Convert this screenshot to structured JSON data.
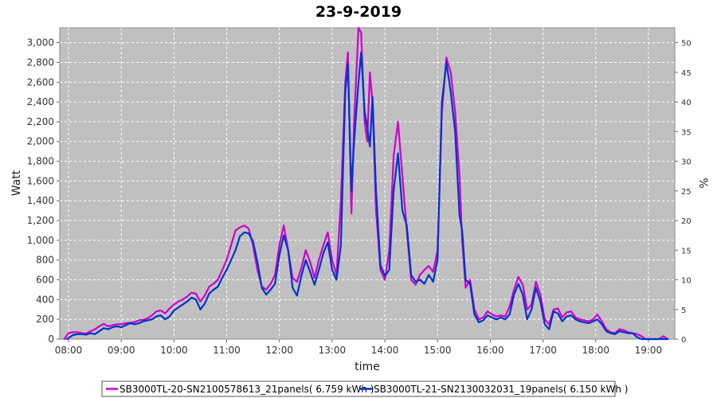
{
  "chart_data": {
    "type": "line",
    "title": "23-9-2019",
    "xlabel": "time",
    "ylabel": "Watt",
    "y2label": "%",
    "ylim": [
      0,
      3150
    ],
    "y2lim": [
      0,
      52.5
    ],
    "xlim": [
      "07:50",
      "19:30"
    ],
    "yticks": [
      0,
      200,
      400,
      600,
      800,
      1000,
      1200,
      1400,
      1600,
      1800,
      2000,
      2200,
      2400,
      2600,
      2800,
      3000
    ],
    "ytick_labels": [
      "0",
      "200",
      "400",
      "600",
      "800",
      "1,000",
      "1,200",
      "1,400",
      "1,600",
      "1,800",
      "2,000",
      "2,200",
      "2,400",
      "2,600",
      "2,800",
      "3,000"
    ],
    "y2ticks": [
      0,
      5,
      10,
      15,
      20,
      25,
      30,
      35,
      40,
      45,
      50
    ],
    "y2tick_labels": [
      "0",
      "5",
      "10",
      "15",
      "20",
      "25",
      "30",
      "35",
      "40",
      "45",
      "50"
    ],
    "xticks": [
      "08:00",
      "09:00",
      "10:00",
      "11:00",
      "12:00",
      "13:00",
      "14:00",
      "15:00",
      "16:00",
      "17:00",
      "18:00",
      "19:00"
    ],
    "grid": true,
    "legend_position": "bottom",
    "series": [
      {
        "name": "SB3000TL-20-SN2100578613_21panels( 6.759 kWh )",
        "color": "#cc00cc",
        "points": [
          [
            "07:55",
            0
          ],
          [
            "08:00",
            60
          ],
          [
            "08:05",
            70
          ],
          [
            "08:10",
            70
          ],
          [
            "08:15",
            60
          ],
          [
            "08:20",
            55
          ],
          [
            "08:25",
            80
          ],
          [
            "08:30",
            100
          ],
          [
            "08:35",
            130
          ],
          [
            "08:40",
            155
          ],
          [
            "08:45",
            130
          ],
          [
            "08:50",
            140
          ],
          [
            "08:55",
            150
          ],
          [
            "09:00",
            150
          ],
          [
            "09:05",
            160
          ],
          [
            "09:10",
            165
          ],
          [
            "09:15",
            170
          ],
          [
            "09:20",
            190
          ],
          [
            "09:25",
            195
          ],
          [
            "09:30",
            210
          ],
          [
            "09:35",
            240
          ],
          [
            "09:40",
            280
          ],
          [
            "09:45",
            290
          ],
          [
            "09:50",
            260
          ],
          [
            "09:55",
            310
          ],
          [
            "10:00",
            350
          ],
          [
            "10:05",
            380
          ],
          [
            "10:10",
            400
          ],
          [
            "10:15",
            430
          ],
          [
            "10:20",
            470
          ],
          [
            "10:25",
            460
          ],
          [
            "10:30",
            380
          ],
          [
            "10:35",
            440
          ],
          [
            "10:40",
            530
          ],
          [
            "10:45",
            560
          ],
          [
            "10:50",
            600
          ],
          [
            "10:55",
            700
          ],
          [
            "11:00",
            800
          ],
          [
            "11:05",
            950
          ],
          [
            "11:10",
            1100
          ],
          [
            "11:15",
            1130
          ],
          [
            "11:20",
            1150
          ],
          [
            "11:25",
            1120
          ],
          [
            "11:30",
            950
          ],
          [
            "11:35",
            700
          ],
          [
            "11:40",
            530
          ],
          [
            "11:45",
            500
          ],
          [
            "11:50",
            560
          ],
          [
            "11:55",
            650
          ],
          [
            "12:00",
            950
          ],
          [
            "12:05",
            1150
          ],
          [
            "12:10",
            900
          ],
          [
            "12:15",
            620
          ],
          [
            "12:20",
            580
          ],
          [
            "12:25",
            720
          ],
          [
            "12:30",
            900
          ],
          [
            "12:35",
            780
          ],
          [
            "12:40",
            620
          ],
          [
            "12:45",
            800
          ],
          [
            "12:50",
            950
          ],
          [
            "12:55",
            1080
          ],
          [
            "13:00",
            800
          ],
          [
            "13:05",
            650
          ],
          [
            "13:10",
            1400
          ],
          [
            "13:15",
            2600
          ],
          [
            "13:18",
            2900
          ],
          [
            "13:22",
            1270
          ],
          [
            "13:25",
            2200
          ],
          [
            "13:30",
            3150
          ],
          [
            "13:33",
            3100
          ],
          [
            "13:37",
            2200
          ],
          [
            "13:40",
            2000
          ],
          [
            "13:43",
            2700
          ],
          [
            "13:46",
            2400
          ],
          [
            "13:50",
            1300
          ],
          [
            "13:55",
            700
          ],
          [
            "14:00",
            600
          ],
          [
            "14:05",
            900
          ],
          [
            "14:10",
            1850
          ],
          [
            "14:15",
            2200
          ],
          [
            "14:20",
            1650
          ],
          [
            "14:25",
            1100
          ],
          [
            "14:30",
            600
          ],
          [
            "14:35",
            550
          ],
          [
            "14:40",
            650
          ],
          [
            "14:45",
            700
          ],
          [
            "14:50",
            740
          ],
          [
            "14:55",
            680
          ],
          [
            "15:00",
            900
          ],
          [
            "15:05",
            2300
          ],
          [
            "15:10",
            2850
          ],
          [
            "15:15",
            2700
          ],
          [
            "15:20",
            2300
          ],
          [
            "15:25",
            1650
          ],
          [
            "15:28",
            1000
          ],
          [
            "15:32",
            520
          ],
          [
            "15:37",
            600
          ],
          [
            "15:42",
            300
          ],
          [
            "15:47",
            200
          ],
          [
            "15:52",
            220
          ],
          [
            "15:57",
            280
          ],
          [
            "16:02",
            250
          ],
          [
            "16:07",
            230
          ],
          [
            "16:12",
            240
          ],
          [
            "16:17",
            230
          ],
          [
            "16:22",
            330
          ],
          [
            "16:27",
            500
          ],
          [
            "16:32",
            630
          ],
          [
            "16:37",
            550
          ],
          [
            "16:42",
            300
          ],
          [
            "16:47",
            350
          ],
          [
            "16:52",
            580
          ],
          [
            "16:57",
            450
          ],
          [
            "17:02",
            200
          ],
          [
            "17:07",
            150
          ],
          [
            "17:12",
            300
          ],
          [
            "17:17",
            310
          ],
          [
            "17:22",
            220
          ],
          [
            "17:27",
            270
          ],
          [
            "17:32",
            280
          ],
          [
            "17:37",
            220
          ],
          [
            "17:42",
            200
          ],
          [
            "17:47",
            190
          ],
          [
            "17:52",
            180
          ],
          [
            "17:57",
            200
          ],
          [
            "18:02",
            250
          ],
          [
            "18:07",
            180
          ],
          [
            "18:12",
            100
          ],
          [
            "18:17",
            70
          ],
          [
            "18:22",
            60
          ],
          [
            "18:27",
            100
          ],
          [
            "18:32",
            90
          ],
          [
            "18:37",
            70
          ],
          [
            "18:42",
            60
          ],
          [
            "18:47",
            50
          ],
          [
            "18:52",
            30
          ],
          [
            "18:57",
            0
          ],
          [
            "19:02",
            0
          ],
          [
            "19:07",
            0
          ],
          [
            "19:12",
            0
          ],
          [
            "19:17",
            30
          ],
          [
            "19:22",
            0
          ]
        ]
      },
      {
        "name": "SB3000TL-21-SN2130032031_19panels( 6.150 kWh )",
        "color": "#0033cc",
        "points": [
          [
            "07:58",
            0
          ],
          [
            "08:05",
            40
          ],
          [
            "08:10",
            50
          ],
          [
            "08:15",
            50
          ],
          [
            "08:20",
            45
          ],
          [
            "08:25",
            60
          ],
          [
            "08:30",
            50
          ],
          [
            "08:35",
            80
          ],
          [
            "08:40",
            110
          ],
          [
            "08:45",
            100
          ],
          [
            "08:50",
            120
          ],
          [
            "08:55",
            130
          ],
          [
            "09:00",
            120
          ],
          [
            "09:05",
            140
          ],
          [
            "09:10",
            160
          ],
          [
            "09:15",
            150
          ],
          [
            "09:20",
            160
          ],
          [
            "09:25",
            180
          ],
          [
            "09:30",
            190
          ],
          [
            "09:35",
            200
          ],
          [
            "09:40",
            230
          ],
          [
            "09:45",
            240
          ],
          [
            "09:50",
            200
          ],
          [
            "09:55",
            230
          ],
          [
            "10:00",
            290
          ],
          [
            "10:05",
            320
          ],
          [
            "10:10",
            350
          ],
          [
            "10:15",
            380
          ],
          [
            "10:20",
            420
          ],
          [
            "10:25",
            400
          ],
          [
            "10:30",
            300
          ],
          [
            "10:35",
            360
          ],
          [
            "10:40",
            460
          ],
          [
            "10:45",
            500
          ],
          [
            "10:50",
            530
          ],
          [
            "10:55",
            620
          ],
          [
            "11:00",
            700
          ],
          [
            "11:05",
            800
          ],
          [
            "11:10",
            900
          ],
          [
            "11:15",
            1040
          ],
          [
            "11:20",
            1080
          ],
          [
            "11:25",
            1070
          ],
          [
            "11:30",
            990
          ],
          [
            "11:35",
            780
          ],
          [
            "11:40",
            520
          ],
          [
            "11:45",
            450
          ],
          [
            "11:50",
            500
          ],
          [
            "11:55",
            560
          ],
          [
            "12:00",
            850
          ],
          [
            "12:05",
            1050
          ],
          [
            "12:10",
            900
          ],
          [
            "12:15",
            520
          ],
          [
            "12:20",
            440
          ],
          [
            "12:25",
            640
          ],
          [
            "12:30",
            800
          ],
          [
            "12:35",
            680
          ],
          [
            "12:40",
            550
          ],
          [
            "12:45",
            700
          ],
          [
            "12:50",
            870
          ],
          [
            "12:55",
            980
          ],
          [
            "13:00",
            700
          ],
          [
            "13:05",
            600
          ],
          [
            "13:10",
            950
          ],
          [
            "13:15",
            2500
          ],
          [
            "13:18",
            2780
          ],
          [
            "13:22",
            1500
          ],
          [
            "13:25",
            2000
          ],
          [
            "13:30",
            2600
          ],
          [
            "13:33",
            2900
          ],
          [
            "13:37",
            2300
          ],
          [
            "13:40",
            2150
          ],
          [
            "13:43",
            1950
          ],
          [
            "13:46",
            2450
          ],
          [
            "13:50",
            1500
          ],
          [
            "13:55",
            750
          ],
          [
            "14:00",
            640
          ],
          [
            "14:05",
            700
          ],
          [
            "14:10",
            1500
          ],
          [
            "14:15",
            1880
          ],
          [
            "14:20",
            1300
          ],
          [
            "14:25",
            1150
          ],
          [
            "14:30",
            650
          ],
          [
            "14:35",
            580
          ],
          [
            "14:40",
            600
          ],
          [
            "14:45",
            560
          ],
          [
            "14:50",
            650
          ],
          [
            "14:55",
            580
          ],
          [
            "15:00",
            800
          ],
          [
            "15:05",
            2400
          ],
          [
            "15:10",
            2800
          ],
          [
            "15:15",
            2500
          ],
          [
            "15:20",
            2100
          ],
          [
            "15:25",
            1250
          ],
          [
            "15:28",
            1100
          ],
          [
            "15:32",
            600
          ],
          [
            "15:37",
            560
          ],
          [
            "15:42",
            250
          ],
          [
            "15:47",
            170
          ],
          [
            "15:52",
            190
          ],
          [
            "15:57",
            240
          ],
          [
            "16:02",
            220
          ],
          [
            "16:07",
            200
          ],
          [
            "16:12",
            220
          ],
          [
            "16:17",
            200
          ],
          [
            "16:22",
            250
          ],
          [
            "16:27",
            450
          ],
          [
            "16:32",
            560
          ],
          [
            "16:37",
            450
          ],
          [
            "16:42",
            200
          ],
          [
            "16:47",
            300
          ],
          [
            "16:52",
            520
          ],
          [
            "16:57",
            380
          ],
          [
            "17:02",
            150
          ],
          [
            "17:07",
            100
          ],
          [
            "17:12",
            280
          ],
          [
            "17:17",
            260
          ],
          [
            "17:22",
            180
          ],
          [
            "17:27",
            230
          ],
          [
            "17:32",
            240
          ],
          [
            "17:37",
            200
          ],
          [
            "17:42",
            180
          ],
          [
            "17:47",
            170
          ],
          [
            "17:52",
            160
          ],
          [
            "17:57",
            180
          ],
          [
            "18:02",
            200
          ],
          [
            "18:07",
            150
          ],
          [
            "18:12",
            80
          ],
          [
            "18:17",
            60
          ],
          [
            "18:22",
            50
          ],
          [
            "18:27",
            80
          ],
          [
            "18:32",
            70
          ],
          [
            "18:37",
            60
          ],
          [
            "18:42",
            60
          ],
          [
            "18:47",
            20
          ],
          [
            "18:52",
            0
          ],
          [
            "18:57",
            0
          ],
          [
            "19:02",
            0
          ],
          [
            "19:07",
            0
          ],
          [
            "19:12",
            0
          ],
          [
            "19:17",
            0
          ],
          [
            "19:22",
            0
          ]
        ]
      }
    ]
  }
}
